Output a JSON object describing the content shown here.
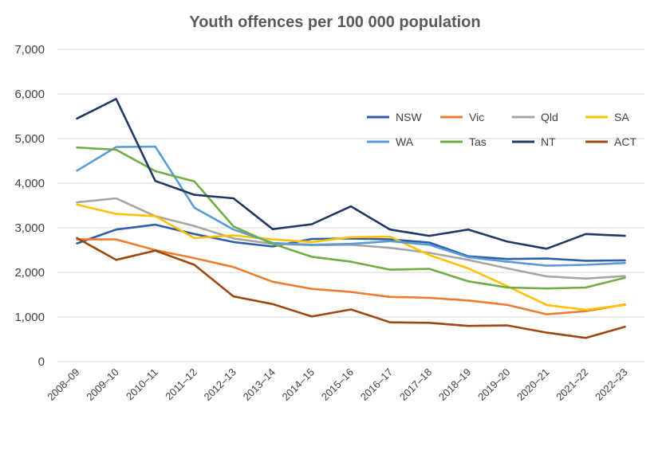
{
  "chart_data": {
    "type": "line",
    "title": "Youth offences per 100 000 population",
    "xlabel": "",
    "ylabel": "",
    "ylim": [
      0,
      7000
    ],
    "yticks": [
      0,
      1000,
      2000,
      3000,
      4000,
      5000,
      6000,
      7000
    ],
    "ytick_labels": [
      "0",
      "1,000",
      "2,000",
      "3,000",
      "4,000",
      "5,000",
      "6,000",
      "7,000"
    ],
    "grid": true,
    "legend_position": "top-right",
    "categories": [
      "2008–09",
      "2009–10",
      "2010–11",
      "2011–12",
      "2012–13",
      "2013–14",
      "2014–15",
      "2015–16",
      "2016–17",
      "2017–18",
      "2018–19",
      "2019–20",
      "2020–21",
      "2021–22",
      "2022–23"
    ],
    "series": [
      {
        "name": "NSW",
        "color": "#2e5fa8",
        "values": [
          2650,
          2960,
          3070,
          2860,
          2680,
          2580,
          2750,
          2760,
          2740,
          2670,
          2360,
          2300,
          2310,
          2260,
          2270
        ]
      },
      {
        "name": "Vic",
        "color": "#ed7d31",
        "values": [
          2740,
          2740,
          2500,
          2320,
          2120,
          1790,
          1630,
          1560,
          1450,
          1430,
          1370,
          1270,
          1060,
          1130,
          1280
        ]
      },
      {
        "name": "Qld",
        "color": "#a5a5a5",
        "values": [
          3570,
          3660,
          3260,
          3040,
          2760,
          2640,
          2610,
          2620,
          2550,
          2440,
          2280,
          2090,
          1910,
          1860,
          1920
        ]
      },
      {
        "name": "SA",
        "color": "#ffc000",
        "values": [
          3520,
          3310,
          3260,
          2770,
          2830,
          2740,
          2680,
          2790,
          2800,
          2390,
          2090,
          1690,
          1270,
          1160,
          1270
        ]
      },
      {
        "name": "WA",
        "color": "#5b9bd5",
        "values": [
          4280,
          4810,
          4820,
          3450,
          2960,
          2660,
          2620,
          2640,
          2700,
          2620,
          2340,
          2240,
          2150,
          2170,
          2210
        ]
      },
      {
        "name": "Tas",
        "color": "#70ad47",
        "values": [
          4800,
          4750,
          4270,
          4040,
          3030,
          2640,
          2350,
          2240,
          2060,
          2080,
          1800,
          1660,
          1640,
          1660,
          1880
        ]
      },
      {
        "name": "NT",
        "color": "#203864",
        "values": [
          5450,
          5890,
          4050,
          3740,
          3660,
          2970,
          3080,
          3480,
          2960,
          2820,
          2960,
          2690,
          2530,
          2860,
          2820
        ]
      },
      {
        "name": "ACT",
        "color": "#9e480e",
        "values": [
          2770,
          2280,
          2490,
          2170,
          1460,
          1290,
          1010,
          1170,
          880,
          870,
          800,
          810,
          650,
          530,
          780
        ]
      }
    ]
  }
}
